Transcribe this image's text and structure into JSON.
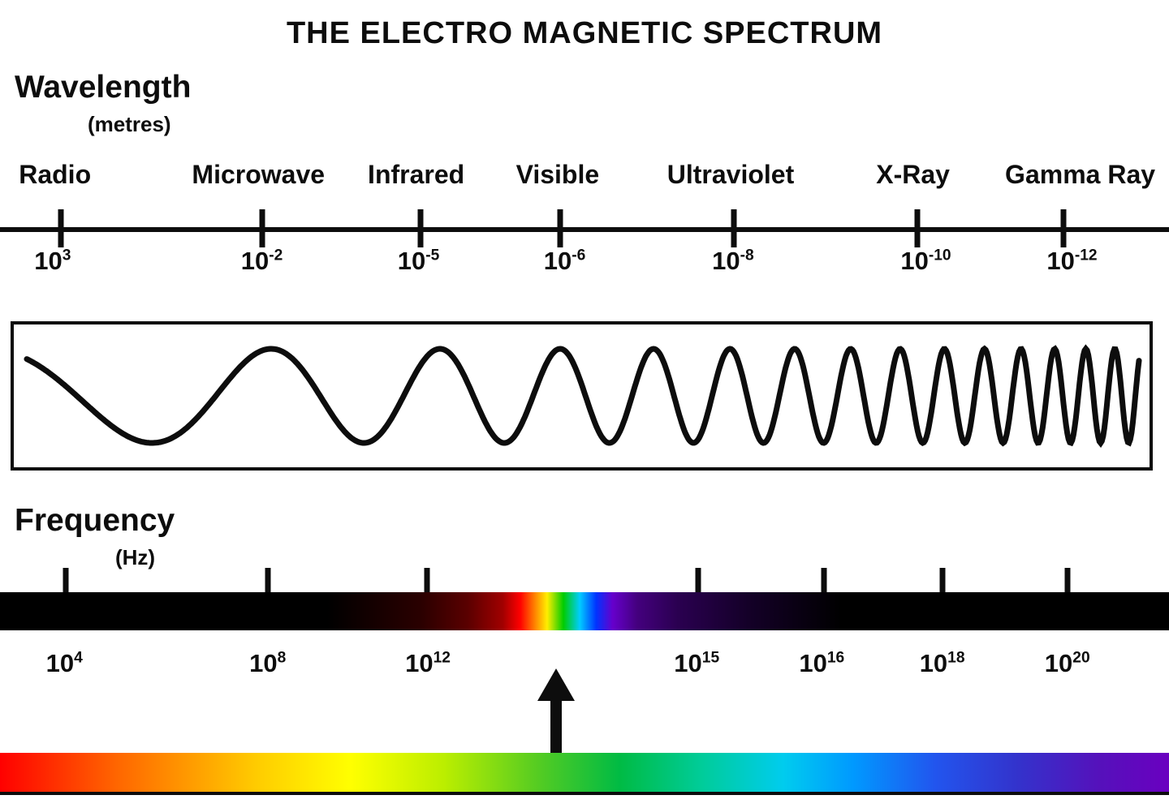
{
  "title": "THE ELECTRO MAGNETIC SPECTRUM",
  "wavelength_axis": {
    "label": "Wavelength",
    "unit": "(metres)",
    "items": [
      {
        "name": "Radio",
        "base": "10",
        "exp": "3"
      },
      {
        "name": "Microwave",
        "base": "10",
        "exp": "-2"
      },
      {
        "name": "Infrared",
        "base": "10",
        "exp": "-5"
      },
      {
        "name": "Visible",
        "base": "10",
        "exp": "-6"
      },
      {
        "name": "Ultraviolet",
        "base": "10",
        "exp": "-8"
      },
      {
        "name": "X-Ray",
        "base": "10",
        "exp": "-10"
      },
      {
        "name": "Gamma Ray",
        "base": "10",
        "exp": "-12"
      }
    ]
  },
  "frequency_axis": {
    "label": "Frequency",
    "unit": "(Hz)",
    "ticks": [
      {
        "base": "10",
        "exp": "4"
      },
      {
        "base": "10",
        "exp": "8"
      },
      {
        "base": "10",
        "exp": "12"
      },
      {
        "base": "10",
        "exp": "15"
      },
      {
        "base": "10",
        "exp": "16"
      },
      {
        "base": "10",
        "exp": "18"
      },
      {
        "base": "10",
        "exp": "20"
      }
    ]
  },
  "colors": {
    "ink": "#0d0d0d",
    "frequency_bar_stops": [
      "#000000 0%",
      "#000000 28%",
      "#2a0000 36%",
      "#5a0000 40%",
      "#a00000 43%",
      "#ff0000 44.5%",
      "#ff8800 45.8%",
      "#ffee00 46.8%",
      "#00cc00 48.2%",
      "#00ccff 49.6%",
      "#0033ff 51%",
      "#6600cc 52.4%",
      "#44007e 54.5%",
      "#2a0050 58%",
      "#140028 64%",
      "#000000 72%",
      "#000000 100%"
    ],
    "rainbow_bar_stops": [
      "#ff0000 0%",
      "#ff6600 10%",
      "#ffcc00 22%",
      "#ffff00 30%",
      "#bbee00 38%",
      "#55cc22 46%",
      "#00bb44 53%",
      "#00cc99 60%",
      "#00ccee 67%",
      "#0099ff 73%",
      "#2255ee 80%",
      "#3333cc 87%",
      "#5511bb 94%",
      "#6a00c0 100%"
    ]
  }
}
